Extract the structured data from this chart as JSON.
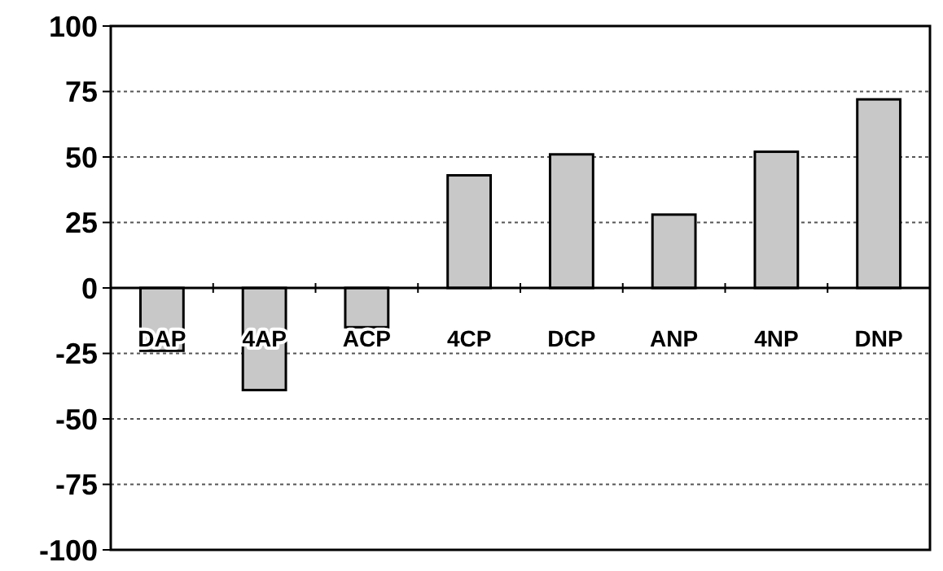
{
  "chart_data": {
    "type": "bar",
    "categories": [
      "DAP",
      "4AP",
      "ACP",
      "4CP",
      "DCP",
      "ANP",
      "4NP",
      "DNP"
    ],
    "values": [
      -24,
      -39,
      -15,
      43,
      51,
      28,
      52,
      72
    ],
    "color": "#c8c8c8",
    "ylim": [
      -100,
      100
    ],
    "yticks": [
      -100,
      -75,
      -50,
      -25,
      0,
      25,
      50,
      75,
      100
    ],
    "grid": "y"
  }
}
